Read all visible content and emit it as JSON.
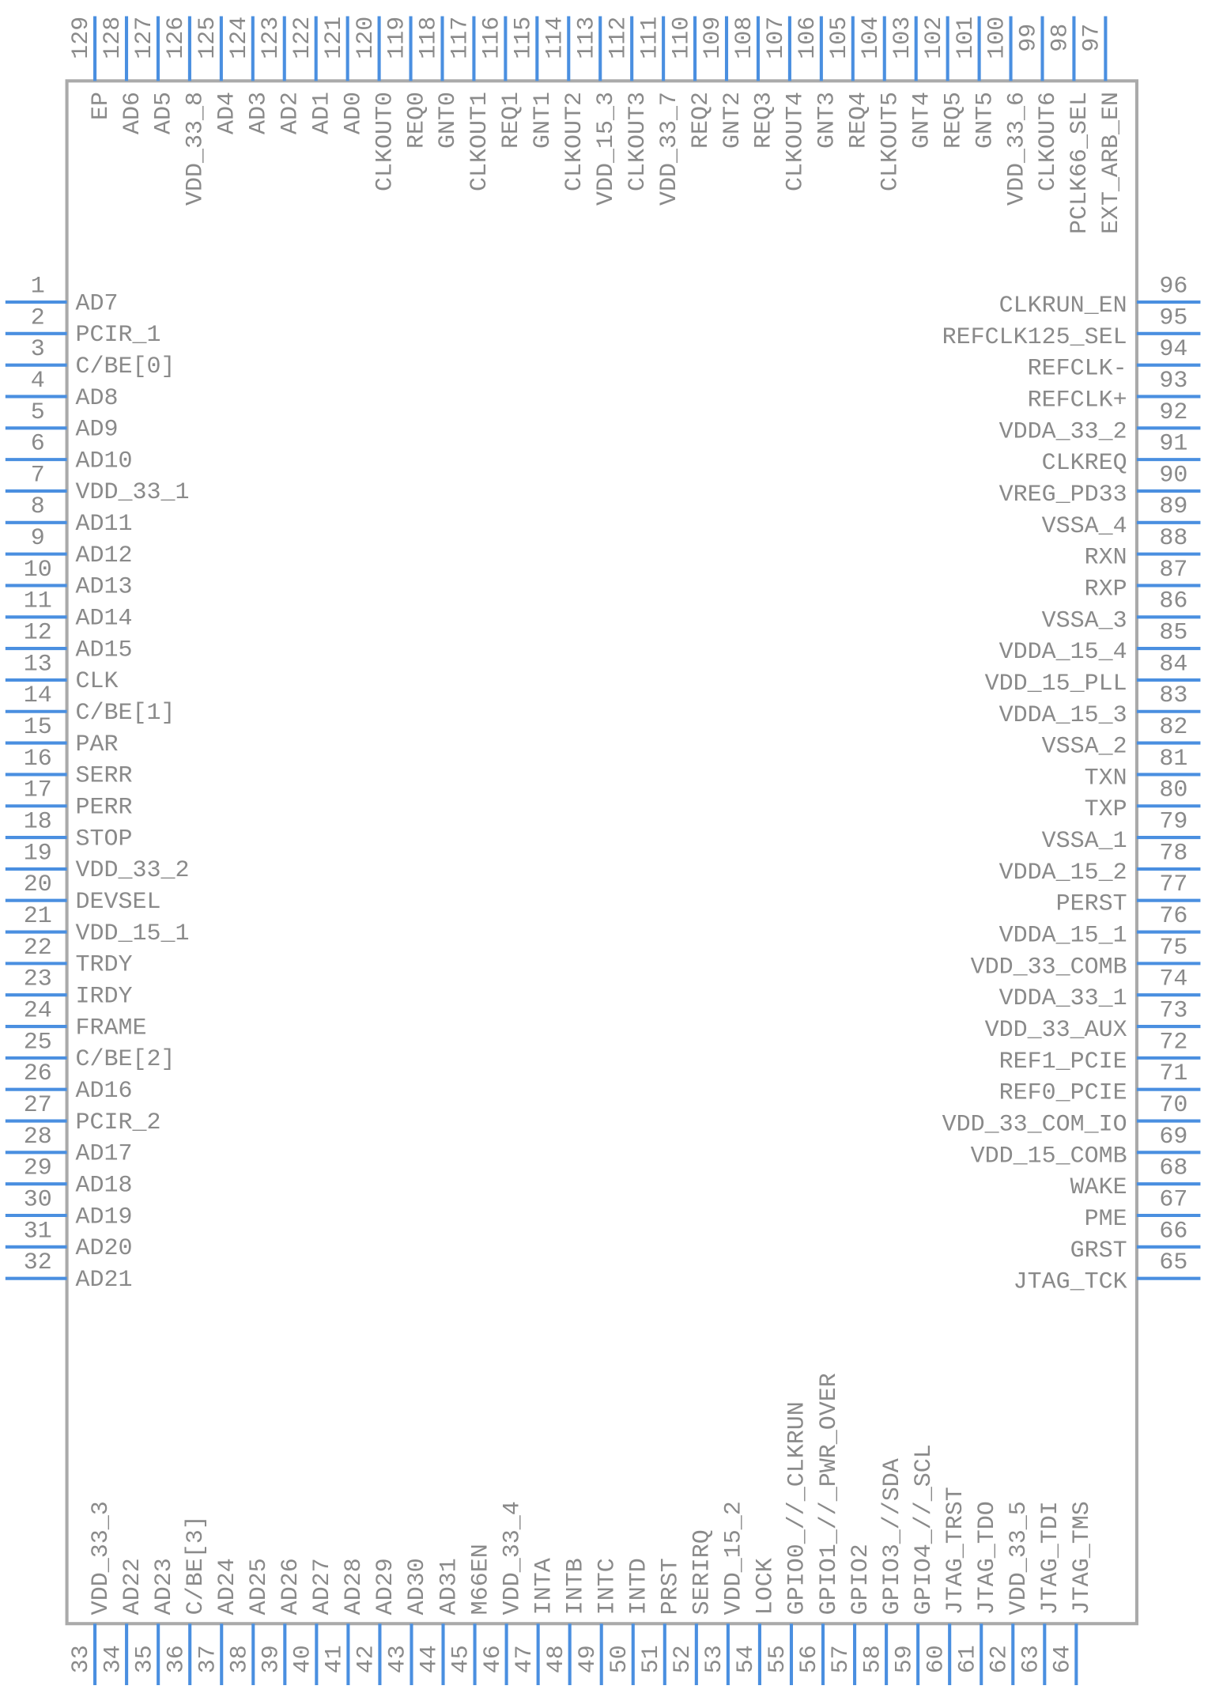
{
  "pins": {
    "top": [
      {
        "number": "129",
        "name": "EP"
      },
      {
        "number": "128",
        "name": "AD6"
      },
      {
        "number": "127",
        "name": "AD5"
      },
      {
        "number": "126",
        "name": "VDD_33_8"
      },
      {
        "number": "125",
        "name": "AD4"
      },
      {
        "number": "124",
        "name": "AD3"
      },
      {
        "number": "123",
        "name": "AD2"
      },
      {
        "number": "122",
        "name": "AD1"
      },
      {
        "number": "121",
        "name": "AD0"
      },
      {
        "number": "120",
        "name": "CLKOUT0"
      },
      {
        "number": "119",
        "name": "REQ0"
      },
      {
        "number": "118",
        "name": "GNT0"
      },
      {
        "number": "117",
        "name": "CLKOUT1"
      },
      {
        "number": "116",
        "name": "REQ1"
      },
      {
        "number": "115",
        "name": "GNT1"
      },
      {
        "number": "114",
        "name": "CLKOUT2"
      },
      {
        "number": "113",
        "name": "VDD_15_3"
      },
      {
        "number": "112",
        "name": "CLKOUT3"
      },
      {
        "number": "111",
        "name": "VDD_33_7"
      },
      {
        "number": "110",
        "name": "REQ2"
      },
      {
        "number": "109",
        "name": "GNT2"
      },
      {
        "number": "108",
        "name": "REQ3"
      },
      {
        "number": "107",
        "name": "CLKOUT4"
      },
      {
        "number": "106",
        "name": "GNT3"
      },
      {
        "number": "105",
        "name": "REQ4"
      },
      {
        "number": "104",
        "name": "CLKOUT5"
      },
      {
        "number": "103",
        "name": "GNT4"
      },
      {
        "number": "102",
        "name": "REQ5"
      },
      {
        "number": "101",
        "name": "GNT5"
      },
      {
        "number": "100",
        "name": "VDD_33_6"
      },
      {
        "number": "99",
        "name": "CLKOUT6"
      },
      {
        "number": "98",
        "name": "PCLK66_SEL"
      },
      {
        "number": "97",
        "name": "EXT_ARB_EN"
      }
    ],
    "left": [
      {
        "number": "1",
        "name": "AD7"
      },
      {
        "number": "2",
        "name": "PCIR_1"
      },
      {
        "number": "3",
        "name": "C/BE[0]"
      },
      {
        "number": "4",
        "name": "AD8"
      },
      {
        "number": "5",
        "name": "AD9"
      },
      {
        "number": "6",
        "name": "AD10"
      },
      {
        "number": "7",
        "name": "VDD_33_1"
      },
      {
        "number": "8",
        "name": "AD11"
      },
      {
        "number": "9",
        "name": "AD12"
      },
      {
        "number": "10",
        "name": "AD13"
      },
      {
        "number": "11",
        "name": "AD14"
      },
      {
        "number": "12",
        "name": "AD15"
      },
      {
        "number": "13",
        "name": "CLK"
      },
      {
        "number": "14",
        "name": "C/BE[1]"
      },
      {
        "number": "15",
        "name": "PAR"
      },
      {
        "number": "16",
        "name": "SERR"
      },
      {
        "number": "17",
        "name": "PERR"
      },
      {
        "number": "18",
        "name": "STOP"
      },
      {
        "number": "19",
        "name": "VDD_33_2"
      },
      {
        "number": "20",
        "name": "DEVSEL"
      },
      {
        "number": "21",
        "name": "VDD_15_1"
      },
      {
        "number": "22",
        "name": "TRDY"
      },
      {
        "number": "23",
        "name": "IRDY"
      },
      {
        "number": "24",
        "name": "FRAME"
      },
      {
        "number": "25",
        "name": "C/BE[2]"
      },
      {
        "number": "26",
        "name": "AD16"
      },
      {
        "number": "27",
        "name": "PCIR_2"
      },
      {
        "number": "28",
        "name": "AD17"
      },
      {
        "number": "29",
        "name": "AD18"
      },
      {
        "number": "30",
        "name": "AD19"
      },
      {
        "number": "31",
        "name": "AD20"
      },
      {
        "number": "32",
        "name": "AD21"
      }
    ],
    "bottom": [
      {
        "number": "33",
        "name": "VDD_33_3"
      },
      {
        "number": "34",
        "name": "AD22"
      },
      {
        "number": "35",
        "name": "AD23"
      },
      {
        "number": "36",
        "name": "C/BE[3]"
      },
      {
        "number": "37",
        "name": "AD24"
      },
      {
        "number": "38",
        "name": "AD25"
      },
      {
        "number": "39",
        "name": "AD26"
      },
      {
        "number": "40",
        "name": "AD27"
      },
      {
        "number": "41",
        "name": "AD28"
      },
      {
        "number": "42",
        "name": "AD29"
      },
      {
        "number": "43",
        "name": "AD30"
      },
      {
        "number": "44",
        "name": "AD31"
      },
      {
        "number": "45",
        "name": "M66EN"
      },
      {
        "number": "46",
        "name": "VDD_33_4"
      },
      {
        "number": "47",
        "name": "INTA"
      },
      {
        "number": "48",
        "name": "INTB"
      },
      {
        "number": "49",
        "name": "INTC"
      },
      {
        "number": "50",
        "name": "INTD"
      },
      {
        "number": "51",
        "name": "PRST"
      },
      {
        "number": "52",
        "name": "SERIRQ"
      },
      {
        "number": "53",
        "name": "VDD_15_2"
      },
      {
        "number": "54",
        "name": "LOCK"
      },
      {
        "number": "55",
        "name": "GPIO0_//_CLKRUN"
      },
      {
        "number": "56",
        "name": "GPIO1_//_PWR_OVER"
      },
      {
        "number": "57",
        "name": "GPIO2"
      },
      {
        "number": "58",
        "name": "GPIO3_//SDA"
      },
      {
        "number": "59",
        "name": "GPIO4_//_SCL"
      },
      {
        "number": "60",
        "name": "JTAG_TRST"
      },
      {
        "number": "61",
        "name": "JTAG_TDO"
      },
      {
        "number": "62",
        "name": "VDD_33_5"
      },
      {
        "number": "63",
        "name": "JTAG_TDI"
      },
      {
        "number": "64",
        "name": "JTAG_TMS"
      }
    ],
    "right": [
      {
        "number": "96",
        "name": "CLKRUN_EN"
      },
      {
        "number": "95",
        "name": "REFCLK125_SEL"
      },
      {
        "number": "94",
        "name": "REFCLK-"
      },
      {
        "number": "93",
        "name": "REFCLK+"
      },
      {
        "number": "92",
        "name": "VDDA_33_2"
      },
      {
        "number": "91",
        "name": "CLKREQ"
      },
      {
        "number": "90",
        "name": "VREG_PD33"
      },
      {
        "number": "89",
        "name": "VSSA_4"
      },
      {
        "number": "88",
        "name": "RXN"
      },
      {
        "number": "87",
        "name": "RXP"
      },
      {
        "number": "86",
        "name": "VSSA_3"
      },
      {
        "number": "85",
        "name": "VDDA_15_4"
      },
      {
        "number": "84",
        "name": "VDD_15_PLL"
      },
      {
        "number": "83",
        "name": "VDDA_15_3"
      },
      {
        "number": "82",
        "name": "VSSA_2"
      },
      {
        "number": "81",
        "name": "TXN"
      },
      {
        "number": "80",
        "name": "TXP"
      },
      {
        "number": "79",
        "name": "VSSA_1"
      },
      {
        "number": "78",
        "name": "VDDA_15_2"
      },
      {
        "number": "77",
        "name": "PERST"
      },
      {
        "number": "76",
        "name": "VDDA_15_1"
      },
      {
        "number": "75",
        "name": "VDD_33_COMB"
      },
      {
        "number": "74",
        "name": "VDDA_33_1"
      },
      {
        "number": "73",
        "name": "VDD_33_AUX"
      },
      {
        "number": "72",
        "name": "REF1_PCIE"
      },
      {
        "number": "71",
        "name": "REF0_PCIE"
      },
      {
        "number": "70",
        "name": "VDD_33_COM_IO"
      },
      {
        "number": "69",
        "name": "VDD_15_COMB"
      },
      {
        "number": "68",
        "name": "WAKE"
      },
      {
        "number": "67",
        "name": "PME"
      },
      {
        "number": "66",
        "name": "GRST"
      },
      {
        "number": "65",
        "name": "JTAG_TCK"
      }
    ]
  }
}
